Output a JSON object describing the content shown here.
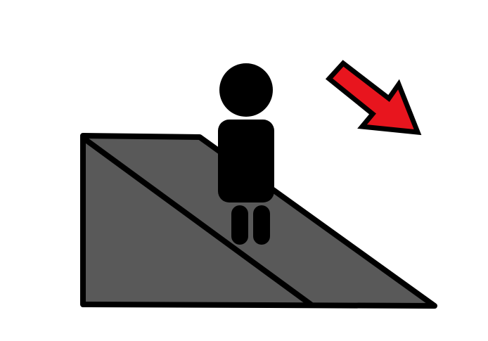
{
  "diagram": {
    "background_color": "#ffffff",
    "ramp": {
      "fill_color": "#595959",
      "stroke_color": "#000000"
    },
    "person": {
      "color": "#000000"
    },
    "arrow": {
      "direction": "down-right",
      "fill_color": "#e8151e",
      "stroke_color": "#000000"
    }
  }
}
